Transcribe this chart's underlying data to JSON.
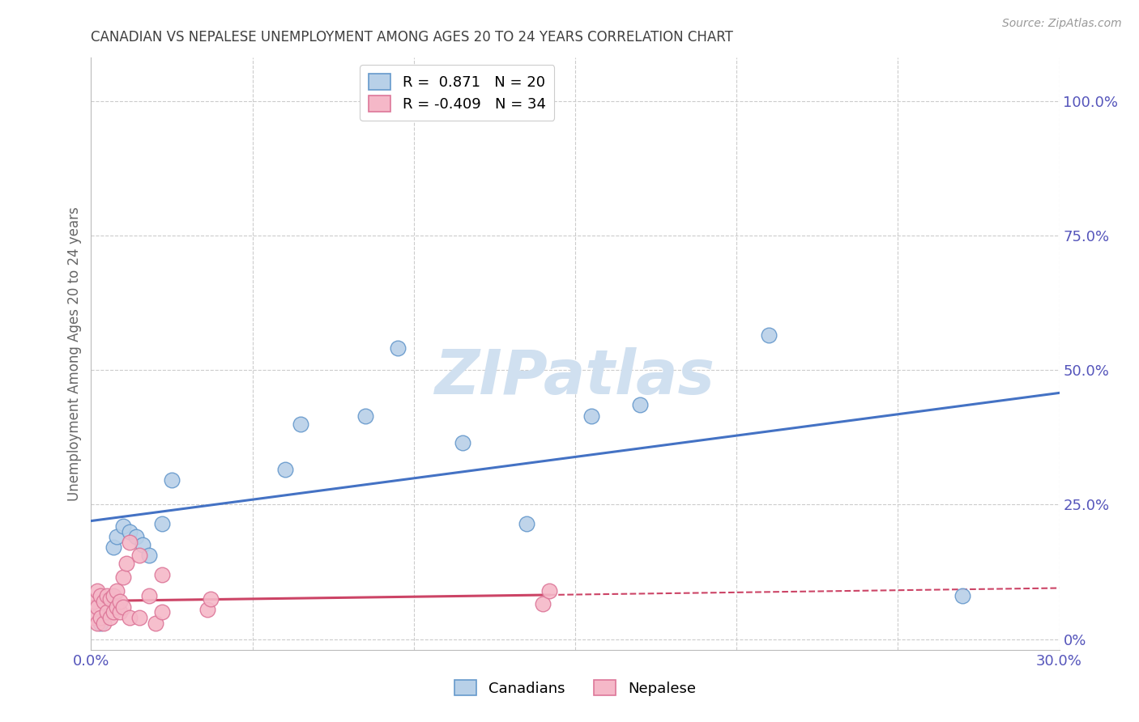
{
  "title": "CANADIAN VS NEPALESE UNEMPLOYMENT AMONG AGES 20 TO 24 YEARS CORRELATION CHART",
  "source": "Source: ZipAtlas.com",
  "ylabel": "Unemployment Among Ages 20 to 24 years",
  "xlim": [
    0.0,
    0.3
  ],
  "ylim": [
    -0.02,
    1.08
  ],
  "xtick_positions": [
    0.0,
    0.05,
    0.1,
    0.15,
    0.2,
    0.25,
    0.3
  ],
  "xticklabels": [
    "0.0%",
    "",
    "",
    "",
    "",
    "",
    "30.0%"
  ],
  "yticks_right": [
    0.0,
    0.25,
    0.5,
    0.75,
    1.0
  ],
  "yticklabels_right": [
    "0%",
    "25.0%",
    "50.0%",
    "75.0%",
    "100.0%"
  ],
  "canadian_x": [
    0.003,
    0.007,
    0.008,
    0.01,
    0.012,
    0.014,
    0.016,
    0.018,
    0.022,
    0.025,
    0.06,
    0.065,
    0.085,
    0.095,
    0.115,
    0.135,
    0.155,
    0.17,
    0.21,
    0.27
  ],
  "canadian_y": [
    0.03,
    0.17,
    0.19,
    0.21,
    0.2,
    0.19,
    0.175,
    0.155,
    0.215,
    0.295,
    0.315,
    0.4,
    0.415,
    0.54,
    0.365,
    0.215,
    0.415,
    0.435,
    0.565,
    0.08
  ],
  "nepalese_x": [
    0.001,
    0.001,
    0.002,
    0.002,
    0.002,
    0.003,
    0.003,
    0.004,
    0.004,
    0.005,
    0.005,
    0.006,
    0.006,
    0.007,
    0.007,
    0.008,
    0.008,
    0.009,
    0.009,
    0.01,
    0.01,
    0.011,
    0.012,
    0.012,
    0.015,
    0.015,
    0.018,
    0.02,
    0.022,
    0.022,
    0.036,
    0.037,
    0.14,
    0.142
  ],
  "nepalese_y": [
    0.04,
    0.07,
    0.03,
    0.06,
    0.09,
    0.04,
    0.08,
    0.03,
    0.07,
    0.05,
    0.08,
    0.04,
    0.075,
    0.05,
    0.08,
    0.06,
    0.09,
    0.05,
    0.07,
    0.06,
    0.115,
    0.14,
    0.18,
    0.04,
    0.155,
    0.04,
    0.08,
    0.03,
    0.12,
    0.05,
    0.055,
    0.075,
    0.065,
    0.09
  ],
  "canadian_R": 0.871,
  "canadian_N": 20,
  "nepalese_R": -0.409,
  "nepalese_N": 34,
  "canadian_color": "#b8d0e8",
  "canadian_edge_color": "#6699cc",
  "canadian_line_color": "#4472c4",
  "nepalese_color": "#f5b8c8",
  "nepalese_edge_color": "#dd7799",
  "nepalese_line_color": "#cc4466",
  "watermark": "ZIPatlas",
  "watermark_color": "#d0e0f0",
  "background_color": "#ffffff",
  "grid_color": "#cccccc",
  "title_color": "#404040",
  "axis_label_color": "#666666",
  "tick_color": "#5555bb",
  "source_color": "#999999"
}
